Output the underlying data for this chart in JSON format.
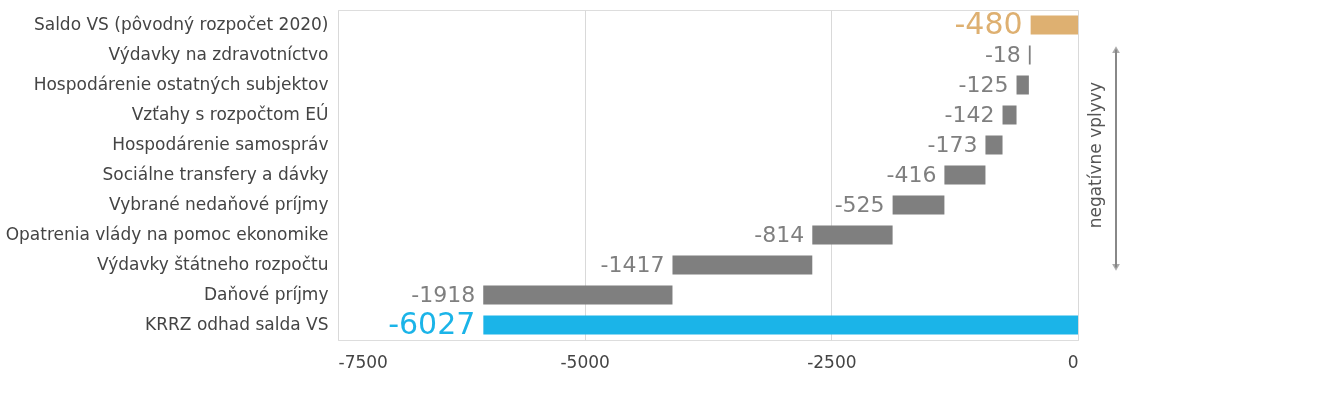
{
  "chart_data": {
    "type": "bar",
    "orientation": "horizontal",
    "categories": [
      "Saldo VS (pôvodný rozpočet 2020)",
      "Výdavky na zdravotníctvo",
      "Hospodárenie ostatných subjektov",
      "Vzťahy s rozpočtom EÚ",
      "Hospodárenie samospráv",
      "Sociálne transfery a dávky",
      "Vybrané nedaňové príjmy",
      "Opatrenia vlády na pomoc ekonomike",
      "Výdavky štátneho rozpočtu",
      "Daňové príjmy",
      "KRRZ odhad salda VS"
    ],
    "values": [
      -480,
      -18,
      -125,
      -142,
      -173,
      -416,
      -525,
      -814,
      -1417,
      -1918,
      -6027
    ],
    "base": [
      0,
      -480,
      -498,
      -623,
      -765,
      -938,
      -1354,
      -1879,
      -2693,
      -4110,
      0
    ],
    "colors": [
      "#deb071",
      "#7f7f7f",
      "#7f7f7f",
      "#7f7f7f",
      "#7f7f7f",
      "#7f7f7f",
      "#7f7f7f",
      "#7f7f7f",
      "#7f7f7f",
      "#7f7f7f",
      "#1bb4e8"
    ],
    "data_labels": true,
    "xlim": [
      -7500,
      0
    ],
    "xticks": [
      -7500,
      -5000,
      -2500,
      0
    ],
    "grid": "x",
    "annotations": [
      "negatívne vplyvy"
    ]
  }
}
